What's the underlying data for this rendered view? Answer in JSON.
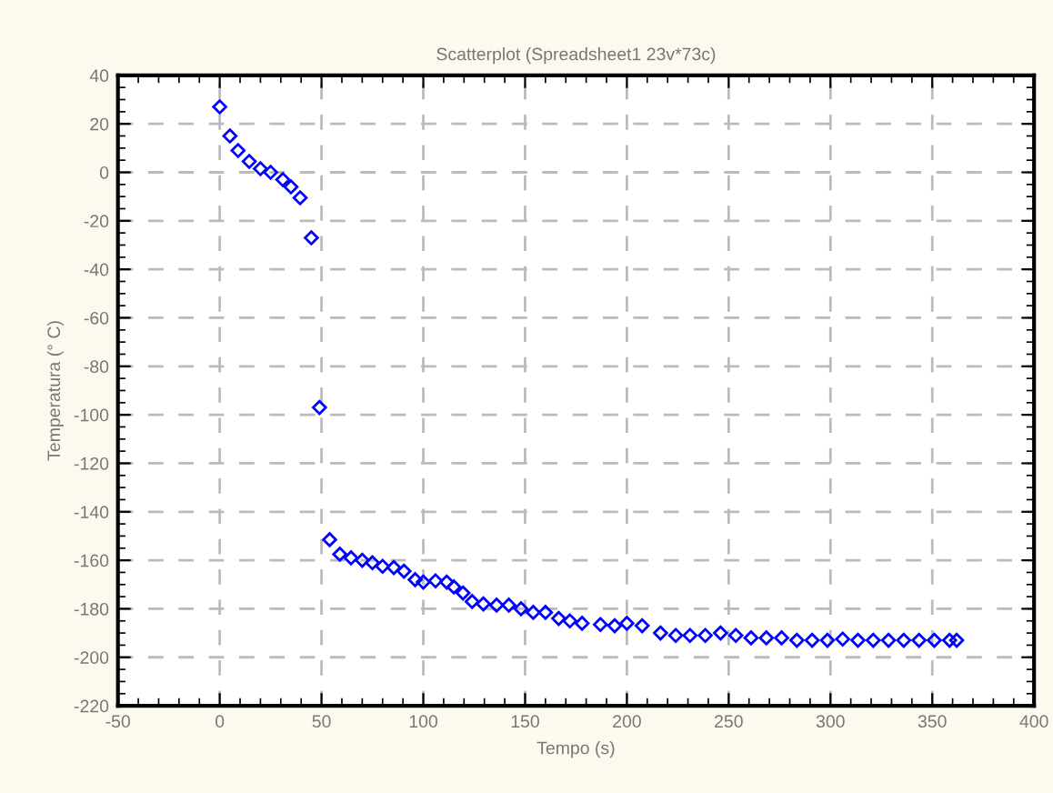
{
  "chart_data": {
    "type": "scatter",
    "title": "Scatterplot (Spreadsheet1 23v*73c)",
    "xlabel": "Tempo (s)",
    "ylabel": "Temperatura (° C)",
    "x": [
      0,
      5,
      9,
      14.5,
      20,
      25,
      31,
      35,
      39.5,
      45,
      49,
      54,
      59,
      64.5,
      70,
      75,
      80,
      85.5,
      90.5,
      96,
      100,
      106,
      111.5,
      115,
      119.5,
      124,
      129.5,
      136,
      142,
      148,
      154,
      160,
      166.5,
      172,
      178,
      187,
      194,
      200,
      207.5,
      216.5,
      224,
      231,
      238.5,
      246,
      253.5,
      261,
      268.5,
      276,
      283.5,
      291,
      298.5,
      306,
      313.5,
      321,
      328.5,
      336,
      343.5,
      351,
      358.5,
      362
    ],
    "values": [
      27,
      15,
      9,
      4.5,
      1.5,
      0,
      -3,
      -6,
      -10.5,
      -27,
      -97,
      -151.5,
      -157.5,
      -159,
      -160,
      -161,
      -162.5,
      -163,
      -164.5,
      -168,
      -169,
      -168.5,
      -169,
      -171,
      -173.5,
      -177,
      -178,
      -178.5,
      -178.5,
      -180,
      -181.5,
      -181.5,
      -184,
      -185,
      -186,
      -186.5,
      -187,
      -186,
      -187,
      -190,
      -191,
      -191,
      -191,
      -190,
      -191,
      -192,
      -192,
      -192,
      -193,
      -193,
      -193,
      -192.5,
      -193,
      -193,
      -193,
      -193,
      -193,
      -193,
      -193,
      -193
    ],
    "color": "#0000ff",
    "marker": "diamond",
    "xlim": [
      -50,
      400
    ],
    "xticks": [
      -50,
      0,
      50,
      100,
      150,
      200,
      250,
      300,
      350,
      400
    ],
    "ylim": [
      -220,
      40
    ],
    "yticks": [
      -220,
      -200,
      -180,
      -160,
      -140,
      -120,
      -100,
      -80,
      -60,
      -40,
      -20,
      0,
      20,
      40
    ],
    "grid": true
  }
}
